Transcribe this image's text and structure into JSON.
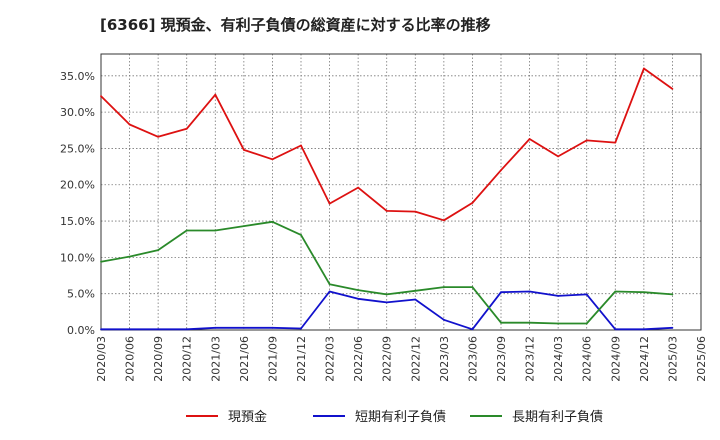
{
  "chart_data": {
    "type": "line",
    "title": "[6366]  現預金、有利子負債の総資産に対する比率の推移",
    "xlabel": "",
    "ylabel": "",
    "ylim": [
      0,
      38
    ],
    "grid": true,
    "legend_position": "bottom",
    "x_ticks": [
      "2020/03",
      "2020/06",
      "2020/09",
      "2020/12",
      "2021/03",
      "2021/06",
      "2021/09",
      "2021/12",
      "2022/03",
      "2022/06",
      "2022/09",
      "2022/12",
      "2023/03",
      "2023/06",
      "2023/09",
      "2023/12",
      "2024/03",
      "2024/06",
      "2024/09",
      "2024/12",
      "2025/03",
      "2025/06"
    ],
    "y_ticks": [
      {
        "value": 0,
        "label": "0.0%"
      },
      {
        "value": 5,
        "label": "5.0%"
      },
      {
        "value": 10,
        "label": "10.0%"
      },
      {
        "value": 15,
        "label": "15.0%"
      },
      {
        "value": 20,
        "label": "20.0%"
      },
      {
        "value": 25,
        "label": "25.0%"
      },
      {
        "value": 30,
        "label": "30.0%"
      },
      {
        "value": 35,
        "label": "35.0%"
      }
    ],
    "x": [
      "2020/03",
      "2020/06",
      "2020/09",
      "2020/12",
      "2021/03",
      "2021/06",
      "2021/09",
      "2021/12",
      "2022/03",
      "2022/06",
      "2022/09",
      "2022/12",
      "2023/03",
      "2023/06",
      "2023/09",
      "2023/12",
      "2024/03",
      "2024/06",
      "2024/09",
      "2024/12",
      "2025/03"
    ],
    "series": [
      {
        "name": "現預金",
        "color": "#dd1111",
        "values": [
          32.2,
          28.3,
          26.6,
          27.7,
          32.4,
          24.8,
          23.5,
          25.4,
          17.4,
          19.6,
          16.4,
          16.3,
          15.1,
          17.5,
          22.0,
          26.3,
          23.9,
          26.1,
          25.8,
          36.0,
          33.2
        ]
      },
      {
        "name": "短期有利子負債",
        "color": "#1111cc",
        "values": [
          0.1,
          0.1,
          0.1,
          0.1,
          0.3,
          0.3,
          0.3,
          0.2,
          5.3,
          4.3,
          3.8,
          4.2,
          1.4,
          0.1,
          5.2,
          5.3,
          4.7,
          4.9,
          0.1,
          0.1,
          0.3
        ]
      },
      {
        "name": "長期有利子負債",
        "color": "#2a8a2a",
        "values": [
          9.4,
          10.1,
          11.0,
          13.7,
          13.7,
          14.3,
          14.9,
          13.1,
          6.3,
          5.5,
          4.9,
          5.4,
          5.9,
          5.9,
          1.0,
          1.0,
          0.9,
          0.9,
          5.3,
          5.2,
          4.9
        ]
      }
    ]
  }
}
